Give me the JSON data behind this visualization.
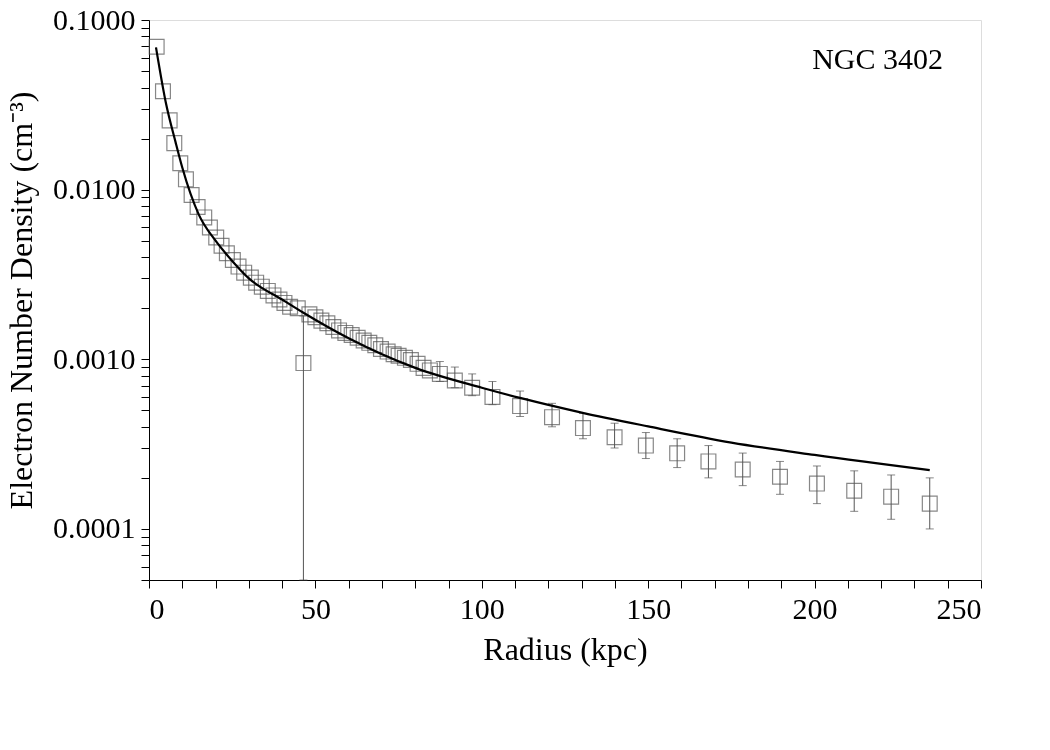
{
  "chart_data": {
    "type": "scatter",
    "xlabel": "Radius (kpc)",
    "ylabel": "Electron Number Density (cm⁻³)",
    "annotations": [
      "NGC 3402"
    ],
    "log": "y",
    "grid": false,
    "line_style": "solid",
    "xlim": [
      0,
      250
    ],
    "xticks": [
      0,
      {
        "value": 10,
        "label": null
      },
      {
        "value": 20,
        "label": null
      },
      {
        "value": 30,
        "label": null
      },
      {
        "value": 40,
        "label": null
      },
      50,
      {
        "value": 60,
        "label": null
      },
      {
        "value": 70,
        "label": null
      },
      {
        "value": 80,
        "label": null
      },
      {
        "value": 90,
        "label": null
      },
      100,
      {
        "value": 110,
        "label": null
      },
      {
        "value": 120,
        "label": null
      },
      {
        "value": 130,
        "label": null
      },
      {
        "value": 140,
        "label": null
      },
      150,
      {
        "value": 160,
        "label": null
      },
      {
        "value": 170,
        "label": null
      },
      {
        "value": 180,
        "label": null
      },
      {
        "value": 190,
        "label": null
      },
      200,
      {
        "value": 210,
        "label": null
      },
      {
        "value": 220,
        "label": null
      },
      {
        "value": 230,
        "label": null
      },
      {
        "value": 240,
        "label": null
      },
      250
    ],
    "ylim": [
      5e-05,
      0.1
    ],
    "yticks": [
      {
        "value": 5e-05,
        "label": null
      },
      {
        "value": 6e-05,
        "label": null
      },
      {
        "value": 7e-05,
        "label": null
      },
      {
        "value": 8e-05,
        "label": null
      },
      {
        "value": 9e-05,
        "label": null
      },
      {
        "value": 0.0001,
        "label": "0.0001"
      },
      {
        "value": 0.0002,
        "label": null
      },
      {
        "value": 0.0003,
        "label": null
      },
      {
        "value": 0.0004,
        "label": null
      },
      {
        "value": 0.0005,
        "label": null
      },
      {
        "value": 0.0006,
        "label": null
      },
      {
        "value": 0.0007,
        "label": null
      },
      {
        "value": 0.0008,
        "label": null
      },
      {
        "value": 0.0009,
        "label": null
      },
      {
        "value": 0.001,
        "label": "0.0010"
      },
      {
        "value": 0.002,
        "label": null
      },
      {
        "value": 0.003,
        "label": null
      },
      {
        "value": 0.004,
        "label": null
      },
      {
        "value": 0.005,
        "label": null
      },
      {
        "value": 0.006,
        "label": null
      },
      {
        "value": 0.007,
        "label": null
      },
      {
        "value": 0.008,
        "label": null
      },
      {
        "value": 0.009,
        "label": null
      },
      {
        "value": 0.01,
        "label": "0.0100"
      },
      {
        "value": 0.02,
        "label": null
      },
      {
        "value": 0.03,
        "label": null
      },
      {
        "value": 0.04,
        "label": null
      },
      {
        "value": 0.05,
        "label": null
      },
      {
        "value": 0.06,
        "label": null
      },
      {
        "value": 0.07,
        "label": null
      },
      {
        "value": 0.08,
        "label": null
      },
      {
        "value": 0.09,
        "label": null
      },
      {
        "value": 0.1,
        "label": "0.1000"
      }
    ],
    "series": [
      {
        "marker": "square",
        "color": "#555555",
        "x": [
          2.3,
          4.2,
          6.2,
          7.6,
          9.4,
          11.1,
          12.8,
          14.6,
          16.6,
          18.3,
          20.2,
          21.8,
          23.4,
          25.2,
          26.9,
          28.6,
          30.6,
          32.2,
          33.9,
          35.7,
          37.4,
          39.2,
          40.7,
          42.4,
          44.7,
          46.4,
          48.2,
          50.0,
          51.8,
          53.6,
          55.4,
          57.1,
          59.0,
          60.9,
          62.7,
          64.5,
          66.2,
          68.0,
          69.7,
          71.7,
          73.5,
          75.0,
          76.9,
          78.7,
          80.7,
          82.5,
          84.4,
          87.4,
          91.9,
          97.1,
          103.2,
          111.5,
          121.1,
          130.4,
          139.9,
          149.3,
          158.7,
          168.1,
          178.4,
          189.6,
          200.7,
          211.9,
          223.0,
          234.6
        ],
        "values": [
          0.0695,
          0.038,
          0.0256,
          0.0188,
          0.0143,
          0.0115,
          0.0093,
          0.0079,
          0.00686,
          0.00598,
          0.00522,
          0.00467,
          0.00422,
          0.00385,
          0.00352,
          0.00324,
          0.00303,
          0.00283,
          0.00268,
          0.00253,
          0.00238,
          0.00225,
          0.00215,
          0.00204,
          0.002,
          0.00095,
          0.00184,
          0.00177,
          0.00169,
          0.00163,
          0.00155,
          0.00148,
          0.00143,
          0.00139,
          0.00134,
          0.00129,
          0.00125,
          0.00121,
          0.00115,
          0.00111,
          0.00107,
          0.00105,
          0.00102,
          0.00099,
          0.00094,
          0.00089,
          0.00086,
          0.00082,
          0.00075,
          0.00068,
          0.0006,
          0.00053,
          0.000456,
          0.000393,
          0.000347,
          0.00031,
          0.000279,
          0.00025,
          0.000224,
          0.000203,
          0.000185,
          0.000168,
          0.000155,
          0.000141
        ],
        "errors": [
          null,
          null,
          null,
          null,
          null,
          null,
          null,
          null,
          null,
          null,
          null,
          null,
          null,
          null,
          null,
          null,
          null,
          null,
          null,
          null,
          null,
          null,
          null,
          null,
          null,
          [
            5e-05,
            0.0018
          ],
          null,
          null,
          null,
          null,
          null,
          null,
          null,
          null,
          null,
          null,
          null,
          null,
          null,
          null,
          null,
          null,
          null,
          null,
          null,
          null,
          null,
          [
            0.00074,
            0.00097
          ],
          [
            0.00068,
            0.0009
          ],
          [
            0.00061,
            0.00082
          ],
          [
            0.00054,
            0.00074
          ],
          [
            0.00046,
            0.00065
          ],
          [
            0.0004,
            0.00055
          ],
          [
            0.00034,
            0.00048
          ],
          [
            0.0003,
            0.00042
          ],
          [
            0.00026,
            0.00037
          ],
          [
            0.00023,
            0.00034
          ],
          [
            0.0002,
            0.00031
          ],
          [
            0.00018,
            0.00028
          ],
          [
            0.00016,
            0.00025
          ],
          [
            0.000141,
            0.000235
          ],
          [
            0.000127,
            0.00022
          ],
          [
            0.000114,
            0.000208
          ],
          [
            0.0001,
            0.0002
          ]
        ]
      },
      {
        "type": "line",
        "color": "#000000",
        "x": [
          2.1,
          5,
          8,
          10,
          15,
          20,
          25,
          30,
          40,
          46.4,
          60,
          80,
          100,
          111.8,
          130,
          150,
          175,
          200,
          234.6
        ],
        "values": [
          0.069,
          0.033,
          0.019,
          0.0135,
          0.0071,
          0.005,
          0.0038,
          0.003,
          0.00225,
          0.00188,
          0.00133,
          0.00089,
          0.00068,
          0.00059,
          0.000485,
          0.000402,
          0.000323,
          0.000273,
          0.000222
        ]
      }
    ]
  }
}
